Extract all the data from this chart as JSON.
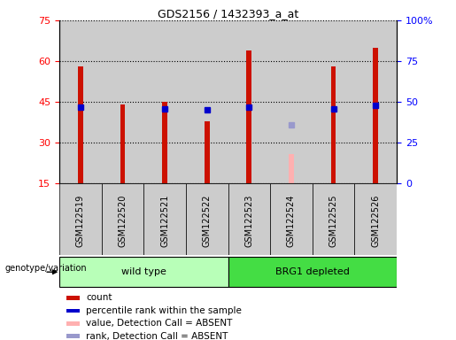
{
  "title": "GDS2156 / 1432393_a_at",
  "samples": [
    "GSM122519",
    "GSM122520",
    "GSM122521",
    "GSM122522",
    "GSM122523",
    "GSM122524",
    "GSM122525",
    "GSM122526"
  ],
  "count_values": [
    58,
    44,
    45,
    38,
    64,
    null,
    58,
    65
  ],
  "rank_values": [
    47,
    null,
    46,
    45,
    47,
    null,
    46,
    48
  ],
  "absent_value": [
    null,
    null,
    null,
    null,
    null,
    26,
    null,
    null
  ],
  "absent_rank": [
    null,
    null,
    null,
    null,
    null,
    36,
    null,
    null
  ],
  "ylim_left": [
    15,
    75
  ],
  "ylim_right": [
    0,
    100
  ],
  "yticks_left": [
    15,
    30,
    45,
    60,
    75
  ],
  "yticks_right": [
    0,
    25,
    50,
    75,
    100
  ],
  "yticklabels_right": [
    "0",
    "25",
    "50",
    "75",
    "100%"
  ],
  "groups": [
    {
      "label": "wild type",
      "start": 0,
      "end": 4,
      "color": "#b8ffb8"
    },
    {
      "label": "BRG1 depleted",
      "start": 4,
      "end": 8,
      "color": "#44dd44"
    }
  ],
  "group_label": "genotype/variation",
  "bar_color": "#cc1100",
  "rank_color": "#0000cc",
  "absent_bar_color": "#ffb0b0",
  "absent_rank_color": "#9999cc",
  "col_bg_color": "#cccccc",
  "plot_bg": "#ffffff",
  "legend": [
    {
      "color": "#cc1100",
      "label": "count"
    },
    {
      "color": "#0000cc",
      "label": "percentile rank within the sample"
    },
    {
      "color": "#ffb0b0",
      "label": "value, Detection Call = ABSENT"
    },
    {
      "color": "#9999cc",
      "label": "rank, Detection Call = ABSENT"
    }
  ],
  "bar_width": 0.12
}
